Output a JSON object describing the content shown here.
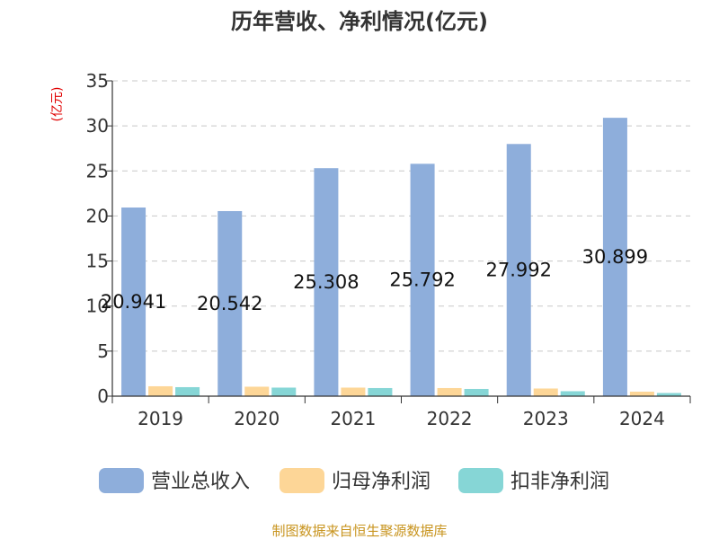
{
  "chart_data": {
    "type": "bar",
    "title": "历年营收、净利情况(亿元)",
    "ylabel": "(亿元)",
    "xlabel": "",
    "categories": [
      "2019",
      "2020",
      "2021",
      "2022",
      "2023",
      "2024"
    ],
    "ylim": [
      0,
      35
    ],
    "yticks": [
      0,
      5,
      10,
      15,
      20,
      25,
      30,
      35
    ],
    "grid": true,
    "legend_position": "bottom",
    "series": [
      {
        "name": "营业总收入",
        "color": "#8eaedb",
        "values": [
          20.941,
          20.542,
          25.308,
          25.792,
          27.992,
          30.899
        ],
        "labels": [
          "20.941",
          "20.542",
          "25.308",
          "25.792",
          "27.992",
          "30.899"
        ]
      },
      {
        "name": "归母净利润",
        "color": "#fdd697",
        "values": [
          1.1,
          1.05,
          0.95,
          0.9,
          0.85,
          0.5
        ]
      },
      {
        "name": "扣非净利润",
        "color": "#86d6d6",
        "values": [
          1.0,
          0.95,
          0.9,
          0.8,
          0.55,
          0.35
        ]
      }
    ],
    "source": "制图数据来自恒生聚源数据库"
  }
}
